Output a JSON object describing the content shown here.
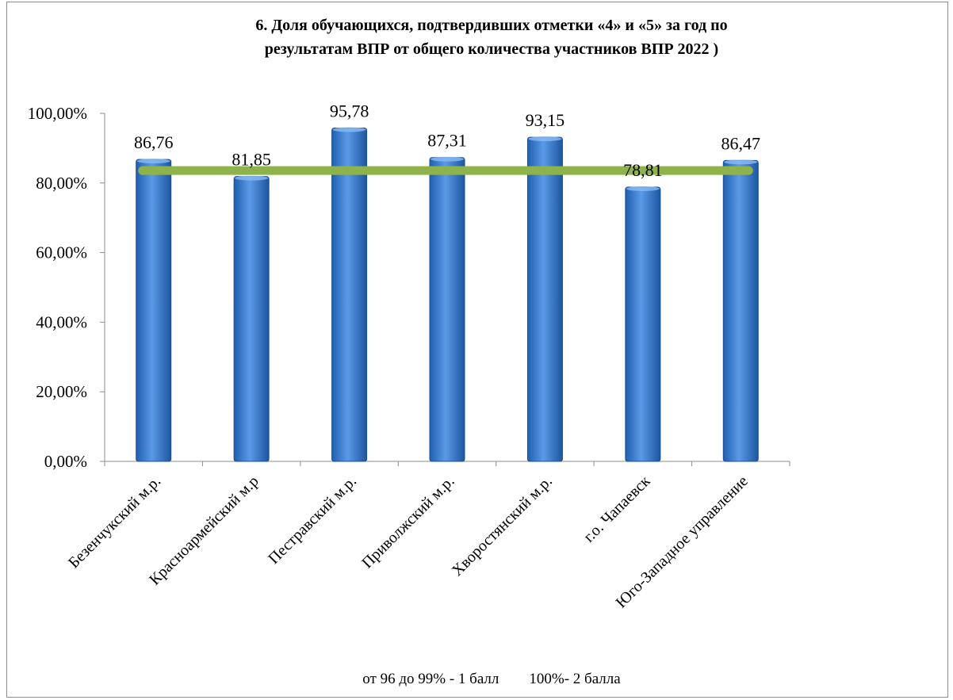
{
  "chart_data": {
    "type": "bar",
    "title_lines": [
      "6. Доля обучающихся, подтвердивших отметки «4» и «5» за год по",
      "результатам ВПР от общего количества участников ВПР 2022 )"
    ],
    "categories": [
      "Безенчукский м.р.",
      "Красноармейский м.р",
      "Пестравский м.р.",
      "Приволжский м.р.",
      "Хворостянский м.р.",
      "г.о. Чапаевск",
      "Юго-Западное  управление"
    ],
    "values": [
      86.76,
      81.85,
      95.78,
      87.31,
      93.15,
      78.81,
      86.47
    ],
    "value_labels": [
      "86,76",
      "81,85",
      "95,78",
      "87,31",
      "93,15",
      "78,81",
      "86,47"
    ],
    "y_ticks": [
      "0,00%",
      "20,00%",
      "40,00%",
      "60,00%",
      "80,00%",
      "100,00%"
    ],
    "ylim": [
      0,
      100
    ],
    "reference_line": {
      "value": 86.76,
      "color": "#8db34a"
    },
    "bar_color": "#3a7fd0",
    "grid": false,
    "legend": "none",
    "footnote": "от 96 до 99% - 1 балл        100%- 2 балла"
  }
}
